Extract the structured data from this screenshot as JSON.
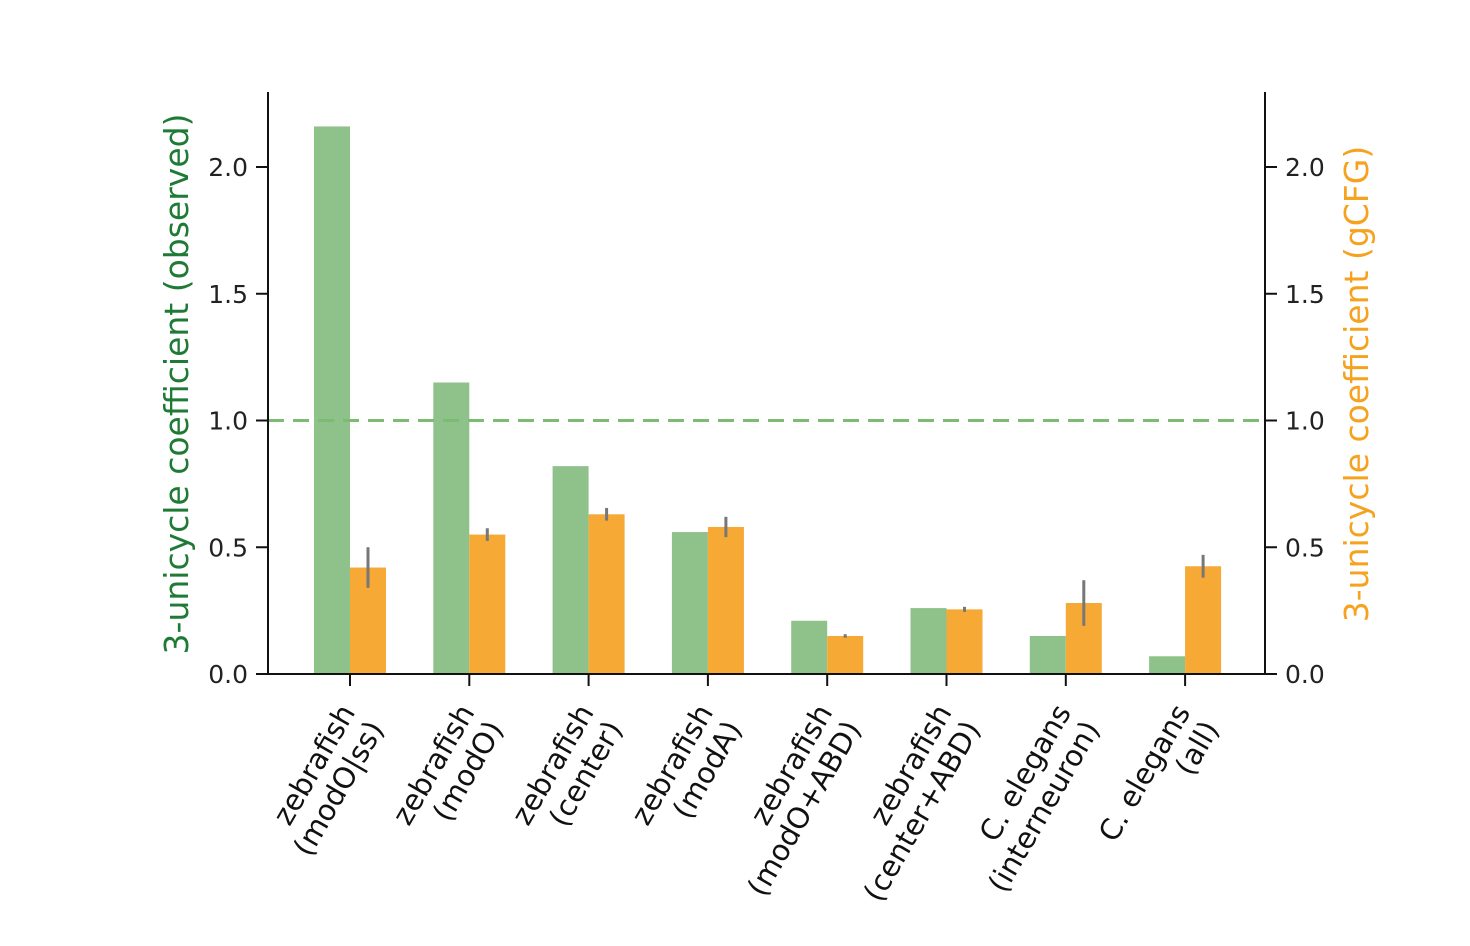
{
  "chart_data": {
    "type": "bar",
    "categories": [
      [
        "zebrafish",
        "(modO|ss)"
      ],
      [
        "zebrafish",
        "(modO)"
      ],
      [
        "zebrafish",
        "(center)"
      ],
      [
        "zebrafish",
        "(modA)"
      ],
      [
        "zebrafish",
        "(modO+ABD)"
      ],
      [
        "zebrafish",
        "(center+ABD)"
      ],
      [
        "C. elegans",
        "(interneuron)"
      ],
      [
        "C. elegans",
        "(all)"
      ]
    ],
    "series": [
      {
        "axis": "left",
        "color": "#8fc28b",
        "values": [
          2.16,
          1.15,
          0.82,
          0.56,
          0.21,
          0.26,
          0.15,
          0.07
        ]
      },
      {
        "axis": "right",
        "color": "#f6a935",
        "values": [
          0.42,
          0.55,
          0.63,
          0.58,
          0.15,
          0.255,
          0.28,
          0.425
        ],
        "errors": [
          0.08,
          0.025,
          0.025,
          0.04,
          0.007,
          0.01,
          0.09,
          0.045
        ]
      }
    ],
    "ylabel_left": "3-unicycle coefficient (observed)",
    "ylabel_right": "3-unicycle coefficient (gCFG)",
    "ylabel_left_color": "#1e7a35",
    "ylabel_right_color": "#f5a21f",
    "ylim": [
      0,
      2.3
    ],
    "yticks": [
      "0.0",
      "0.5",
      "1.0",
      "1.5",
      "2.0"
    ],
    "reference_line": {
      "y": 1.0,
      "style": "dashed",
      "color": "#7dbb72"
    },
    "error_bar_color": "#777777",
    "grid": false,
    "legend": "none"
  }
}
